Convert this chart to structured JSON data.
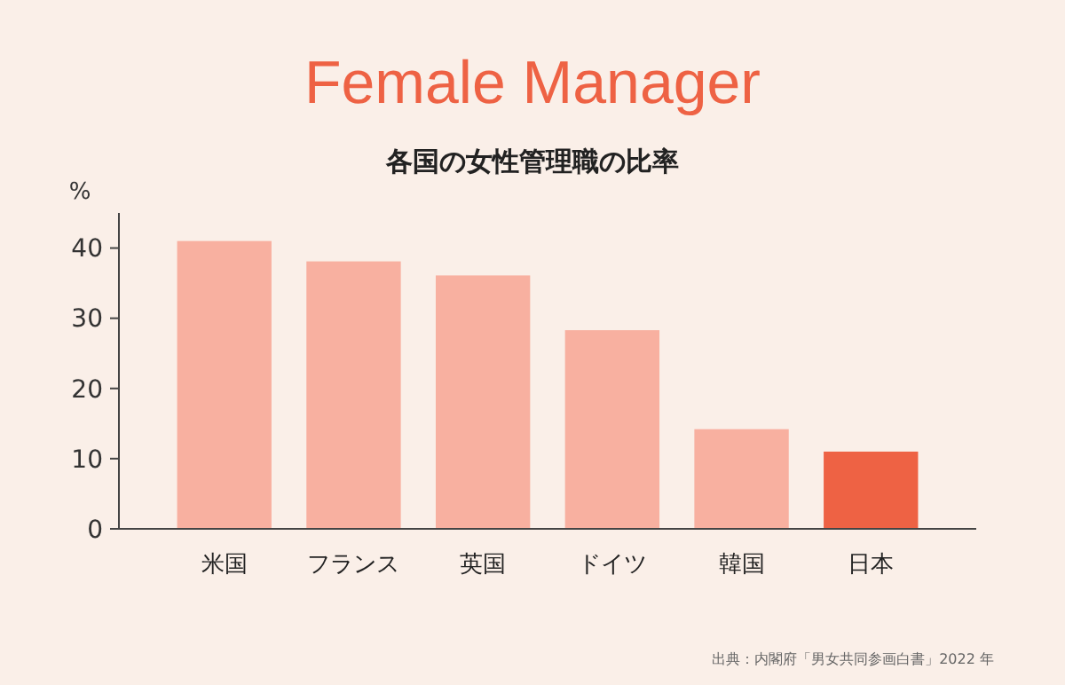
{
  "chart_data": {
    "type": "bar",
    "title": "Female Manager",
    "subtitle": "各国の女性管理職の比率",
    "ylabel": "%",
    "categories": [
      "米国",
      "フランス",
      "英国",
      "ドイツ",
      "韓国",
      "日本"
    ],
    "values": [
      41,
      38.1,
      36.1,
      28.3,
      14.2,
      11
    ],
    "colors": [
      "#f8b0a0",
      "#f8b0a0",
      "#f8b0a0",
      "#f8b0a0",
      "#f8b0a0",
      "#ee6244"
    ],
    "ylim": [
      0,
      45
    ],
    "yticks": [
      0,
      10,
      20,
      30,
      40
    ],
    "grid": false,
    "annotations": [
      "出典：内閣府「男女共同参画白書」2022 年"
    ]
  }
}
